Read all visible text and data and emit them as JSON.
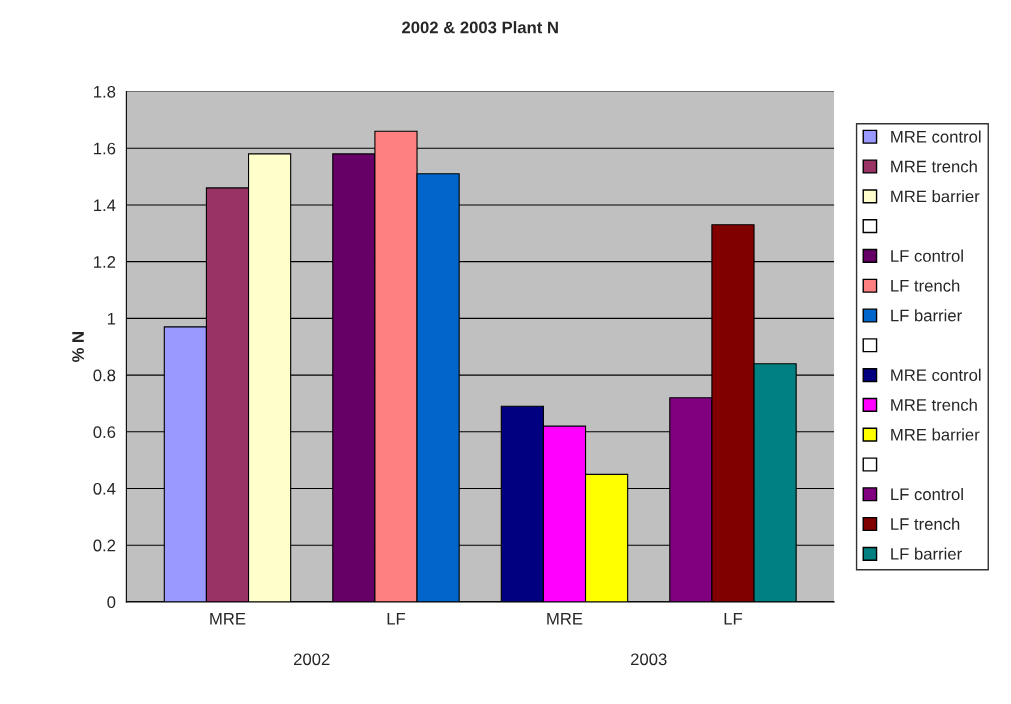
{
  "chart_data": {
    "type": "bar",
    "title": "2002 & 2003 Plant N",
    "ylabel": "% N",
    "categories": [
      "MRE",
      "LF",
      "MRE",
      "LF"
    ],
    "series": [
      {
        "name": "MRE control",
        "color": "#9999ff",
        "values": [
          0.97,
          null,
          null,
          null
        ]
      },
      {
        "name": "MRE trench",
        "color": "#993366",
        "values": [
          1.46,
          null,
          null,
          null
        ]
      },
      {
        "name": "MRE barrier",
        "color": "#ffffcc",
        "values": [
          1.58,
          null,
          null,
          null
        ]
      },
      {
        "color": "#ffffff",
        "values": [
          null,
          null,
          null,
          null
        ]
      },
      {
        "name": "LF control",
        "color": "#660066",
        "values": [
          null,
          1.58,
          null,
          null
        ]
      },
      {
        "name": "LF trench",
        "color": "#ff8080",
        "values": [
          null,
          1.66,
          null,
          null
        ]
      },
      {
        "name": "LF barrier",
        "color": "#0066cc",
        "values": [
          null,
          1.51,
          null,
          null
        ]
      },
      {
        "color": "#ffffff",
        "values": [
          null,
          null,
          null,
          null
        ]
      },
      {
        "name": "MRE control",
        "color": "#000080",
        "values": [
          null,
          null,
          0.69,
          null
        ]
      },
      {
        "name": "MRE trench",
        "color": "#ff00ff",
        "values": [
          null,
          null,
          0.62,
          null
        ]
      },
      {
        "name": "MRE barrier",
        "color": "#ffff00",
        "values": [
          null,
          null,
          0.45,
          null
        ]
      },
      {
        "color": "#ffffff",
        "values": [
          null,
          null,
          null,
          null
        ]
      },
      {
        "name": "LF control",
        "color": "#800080",
        "values": [
          null,
          null,
          null,
          0.72
        ]
      },
      {
        "name": "LF trench",
        "color": "#800000",
        "values": [
          null,
          null,
          null,
          1.33
        ]
      },
      {
        "name": "LF barrier",
        "color": "#008080",
        "values": [
          null,
          null,
          null,
          0.84
        ]
      }
    ],
    "ylim": [
      0,
      1.8
    ],
    "yticks": [
      0,
      {
        "value": 0.2,
        "label": "0.2"
      },
      {
        "value": 0.4,
        "label": "0.4"
      },
      {
        "value": 0.6,
        "label": "0.6"
      },
      {
        "value": 0.8,
        "label": "0.8"
      },
      1,
      {
        "value": 1.2,
        "label": "1.2"
      },
      {
        "value": 1.4,
        "label": "1.4"
      },
      {
        "value": 1.6,
        "label": "1.6"
      },
      {
        "value": 1.8,
        "label": "1.8"
      }
    ],
    "grid": "y",
    "legend": "right",
    "annotations": [
      "2002",
      "2003"
    ]
  }
}
